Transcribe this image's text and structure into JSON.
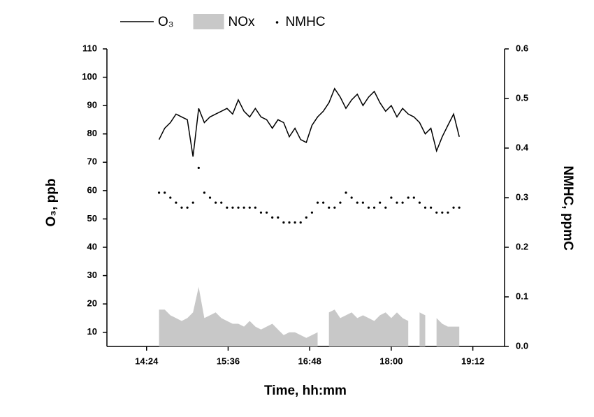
{
  "chart_data": {
    "type": "line",
    "xlabel": "Time, hh:mm",
    "ylabel": "O₃, ppb",
    "y2label": "NMHC, ppmC",
    "x": [
      "14:35",
      "14:40",
      "14:45",
      "14:50",
      "14:55",
      "15:00",
      "15:05",
      "15:10",
      "15:15",
      "15:20",
      "15:25",
      "15:30",
      "15:35",
      "15:40",
      "15:45",
      "15:50",
      "15:55",
      "16:00",
      "16:05",
      "16:10",
      "16:15",
      "16:20",
      "16:25",
      "16:30",
      "16:35",
      "16:40",
      "16:45",
      "16:50",
      "16:55",
      "17:00",
      "17:05",
      "17:10",
      "17:15",
      "17:20",
      "17:25",
      "17:30",
      "17:35",
      "17:40",
      "17:45",
      "17:50",
      "17:55",
      "18:00",
      "18:05",
      "18:10",
      "18:15",
      "18:20",
      "18:25",
      "18:30",
      "18:35",
      "18:40",
      "18:45",
      "18:50",
      "18:55",
      "19:00"
    ],
    "series": [
      {
        "name": "O₃",
        "type": "line",
        "color": "#000000",
        "values": [
          78,
          82,
          84,
          87,
          86,
          85,
          72,
          89,
          84,
          86,
          87,
          88,
          89,
          87,
          92,
          88,
          86,
          89,
          86,
          85,
          82,
          85,
          84,
          79,
          82,
          78,
          77,
          83,
          86,
          88,
          91,
          96,
          93,
          89,
          92,
          94,
          90,
          93,
          95,
          91,
          88,
          90,
          86,
          89,
          87,
          86,
          84,
          80,
          82,
          74,
          79,
          83,
          87,
          79
        ]
      },
      {
        "name": "NOx",
        "type": "area",
        "color": "#c8c8c8",
        "values": [
          18,
          18,
          16,
          15,
          14,
          15,
          17,
          26,
          15,
          16,
          17,
          15,
          14,
          13,
          13,
          12,
          14,
          12,
          11,
          12,
          13,
          11,
          9,
          10,
          10,
          9,
          8,
          9,
          10,
          null,
          17,
          18,
          15,
          16,
          17,
          15,
          16,
          15,
          14,
          16,
          17,
          15,
          17,
          15,
          14,
          null,
          17,
          16,
          null,
          15,
          13,
          12,
          12,
          12
        ]
      },
      {
        "name": "NMHC",
        "type": "scatter",
        "axis": "y2",
        "color": "#000000",
        "values": [
          0.31,
          0.31,
          0.3,
          0.29,
          0.28,
          0.28,
          0.29,
          0.36,
          0.31,
          0.3,
          0.29,
          0.29,
          0.28,
          0.28,
          0.28,
          0.28,
          0.28,
          0.28,
          0.27,
          0.27,
          0.26,
          0.26,
          0.25,
          0.25,
          0.25,
          0.25,
          0.26,
          0.27,
          0.29,
          0.29,
          0.28,
          0.28,
          0.29,
          0.31,
          0.3,
          0.29,
          0.29,
          0.28,
          0.28,
          0.29,
          0.28,
          0.3,
          0.29,
          0.29,
          0.3,
          0.3,
          0.29,
          0.28,
          0.28,
          0.27,
          0.27,
          0.27,
          0.28,
          0.28
        ]
      }
    ],
    "xlim": [
      "13:49",
      "19:40"
    ],
    "xticks": [
      "14:24",
      "15:36",
      "16:48",
      "18:00",
      "19:12"
    ],
    "ylim": [
      5,
      110
    ],
    "yticks": [
      10,
      20,
      30,
      40,
      50,
      60,
      70,
      80,
      90,
      100,
      110
    ],
    "y2lim": [
      0,
      0.6
    ],
    "y2ticks": [
      {
        "value": 0,
        "label": "0.0"
      },
      0.1,
      0.2,
      0.3,
      0.4,
      0.5,
      0.6
    ]
  }
}
